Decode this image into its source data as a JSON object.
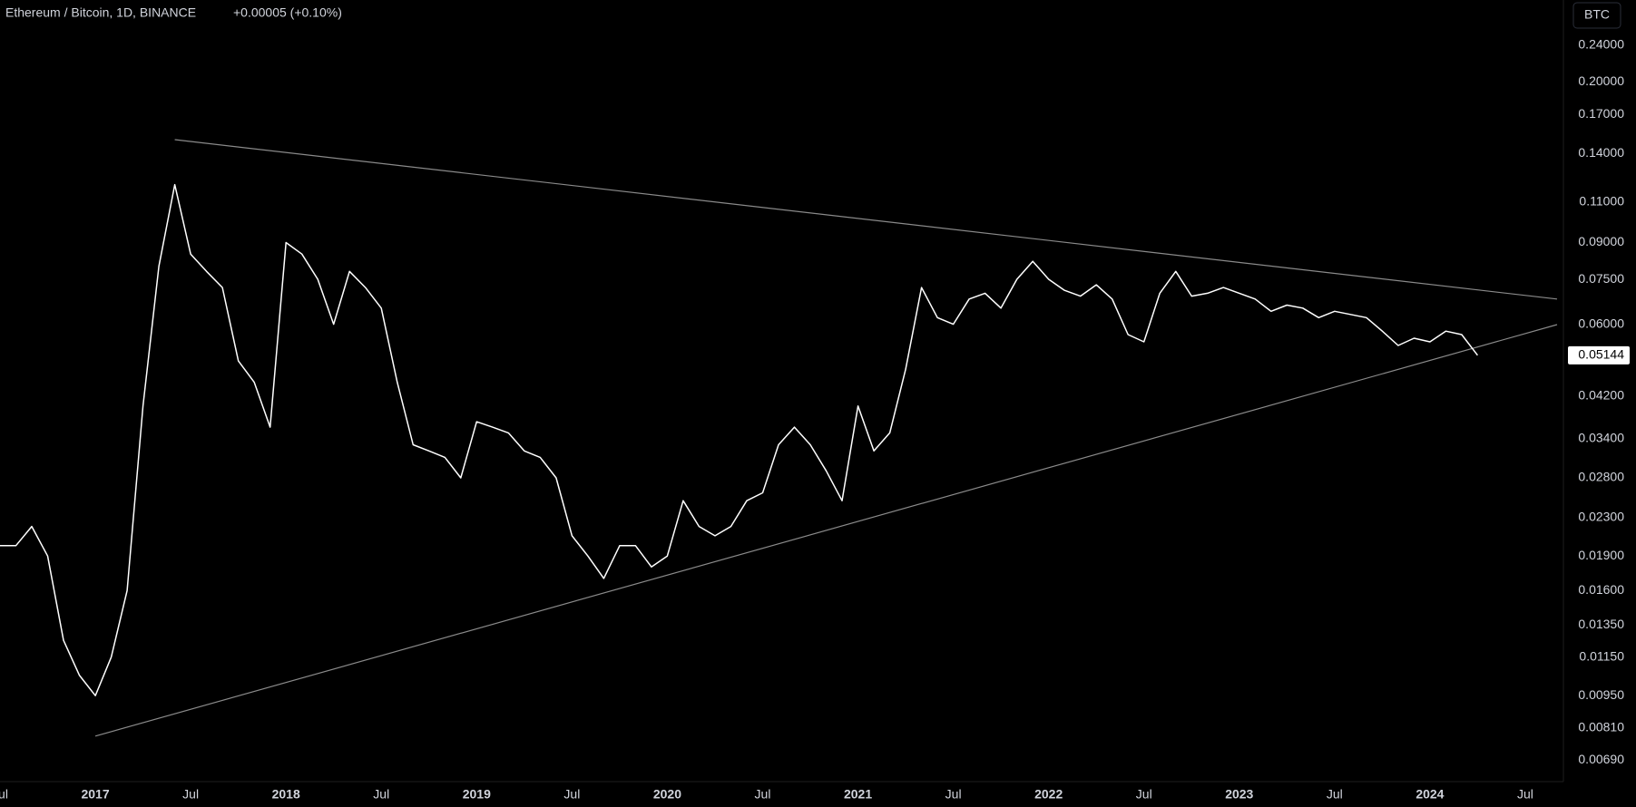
{
  "chart_data": {
    "type": "line",
    "title": "Ethereum / Bitcoin, 1D, BINANCE",
    "change": "+0.00005 (+0.10%)",
    "currency": "BTC",
    "log_scale": true,
    "grid": false,
    "color": "#ffffff",
    "x": [
      "2016-07",
      "2016-08",
      "2016-09",
      "2016-10",
      "2016-11",
      "2016-12",
      "2017-01",
      "2017-02",
      "2017-03",
      "2017-04",
      "2017-05",
      "2017-06",
      "2017-07",
      "2017-08",
      "2017-09",
      "2017-10",
      "2017-11",
      "2017-12",
      "2018-01",
      "2018-02",
      "2018-03",
      "2018-04",
      "2018-05",
      "2018-06",
      "2018-07",
      "2018-08",
      "2018-09",
      "2018-10",
      "2018-11",
      "2018-12",
      "2019-01",
      "2019-02",
      "2019-03",
      "2019-04",
      "2019-05",
      "2019-06",
      "2019-07",
      "2019-08",
      "2019-09",
      "2019-10",
      "2019-11",
      "2019-12",
      "2020-01",
      "2020-02",
      "2020-03",
      "2020-04",
      "2020-05",
      "2020-06",
      "2020-07",
      "2020-08",
      "2020-09",
      "2020-10",
      "2020-11",
      "2020-12",
      "2021-01",
      "2021-02",
      "2021-03",
      "2021-04",
      "2021-05",
      "2021-06",
      "2021-07",
      "2021-08",
      "2021-09",
      "2021-10",
      "2021-11",
      "2021-12",
      "2022-01",
      "2022-02",
      "2022-03",
      "2022-04",
      "2022-05",
      "2022-06",
      "2022-07",
      "2022-08",
      "2022-09",
      "2022-10",
      "2022-11",
      "2022-12",
      "2023-01",
      "2023-02",
      "2023-03",
      "2023-04",
      "2023-05",
      "2023-06",
      "2023-07",
      "2023-08",
      "2023-09",
      "2023-10",
      "2023-11",
      "2023-12",
      "2024-01",
      "2024-02",
      "2024-03",
      "2024-04"
    ],
    "values": [
      0.02,
      0.02,
      0.022,
      0.019,
      0.0125,
      0.0105,
      0.0095,
      0.0115,
      0.016,
      0.04,
      0.08,
      0.12,
      0.085,
      0.078,
      0.072,
      0.05,
      0.045,
      0.036,
      0.09,
      0.085,
      0.075,
      0.06,
      0.078,
      0.072,
      0.065,
      0.045,
      0.033,
      0.032,
      0.031,
      0.028,
      0.037,
      0.036,
      0.035,
      0.032,
      0.031,
      0.028,
      0.021,
      0.019,
      0.017,
      0.02,
      0.02,
      0.018,
      0.019,
      0.025,
      0.022,
      0.021,
      0.022,
      0.025,
      0.026,
      0.033,
      0.036,
      0.033,
      0.029,
      0.025,
      0.04,
      0.032,
      0.035,
      0.048,
      0.072,
      0.062,
      0.06,
      0.068,
      0.07,
      0.065,
      0.075,
      0.082,
      0.075,
      0.071,
      0.069,
      0.073,
      0.068,
      0.057,
      0.055,
      0.07,
      0.078,
      0.069,
      0.07,
      0.072,
      0.07,
      0.068,
      0.064,
      0.066,
      0.065,
      0.062,
      0.064,
      0.063,
      0.062,
      0.058,
      0.054,
      0.056,
      0.055,
      0.058,
      0.057,
      0.05144
    ],
    "trendlines": [
      {
        "x": [
          "2017-06",
          "2024-09"
        ],
        "values": [
          0.15,
          0.068
        ]
      },
      {
        "x": [
          "2017-01",
          "2024-09"
        ],
        "values": [
          0.00777,
          0.0599
        ]
      }
    ],
    "last_label": {
      "value": 0.05144,
      "label": "0.05144"
    },
    "xlim": [
      "2016-07",
      "2024-09"
    ],
    "ylim": [
      0.0062,
      0.3
    ],
    "xticks": [
      {
        "value": "2016-07",
        "label": "Jul"
      },
      {
        "value": "2017-01",
        "label": "2017"
      },
      {
        "value": "2017-07",
        "label": "Jul"
      },
      {
        "value": "2018-01",
        "label": "2018"
      },
      {
        "value": "2018-07",
        "label": "Jul"
      },
      {
        "value": "2019-01",
        "label": "2019"
      },
      {
        "value": "2019-07",
        "label": "Jul"
      },
      {
        "value": "2020-01",
        "label": "2020"
      },
      {
        "value": "2020-07",
        "label": "Jul"
      },
      {
        "value": "2021-01",
        "label": "2021"
      },
      {
        "value": "2021-07",
        "label": "Jul"
      },
      {
        "value": "2022-01",
        "label": "2022"
      },
      {
        "value": "2022-07",
        "label": "Jul"
      },
      {
        "value": "2023-01",
        "label": "2023"
      },
      {
        "value": "2023-07",
        "label": "Jul"
      },
      {
        "value": "2024-01",
        "label": "2024"
      },
      {
        "value": "2024-07",
        "label": "Jul"
      }
    ],
    "yticks": [
      {
        "value": 0.24,
        "label": "0.24000"
      },
      {
        "value": 0.2,
        "label": "0.20000"
      },
      {
        "value": 0.17,
        "label": "0.17000"
      },
      {
        "value": 0.14,
        "label": "0.14000"
      },
      {
        "value": 0.11,
        "label": "0.11000"
      },
      {
        "value": 0.09,
        "label": "0.09000"
      },
      {
        "value": 0.075,
        "label": "0.07500"
      },
      {
        "value": 0.06,
        "label": "0.06000"
      },
      {
        "value": 0.042,
        "label": "0.04200"
      },
      {
        "value": 0.034,
        "label": "0.03400"
      },
      {
        "value": 0.028,
        "label": "0.02800"
      },
      {
        "value": 0.023,
        "label": "0.02300"
      },
      {
        "value": 0.019,
        "label": "0.01900"
      },
      {
        "value": 0.016,
        "label": "0.01600"
      },
      {
        "value": 0.0135,
        "label": "0.01350"
      },
      {
        "value": 0.0115,
        "label": "0.01150"
      },
      {
        "value": 0.0095,
        "label": "0.00950"
      },
      {
        "value": 0.0081,
        "label": "0.00810"
      },
      {
        "value": 0.0069,
        "label": "0.00690"
      }
    ]
  }
}
